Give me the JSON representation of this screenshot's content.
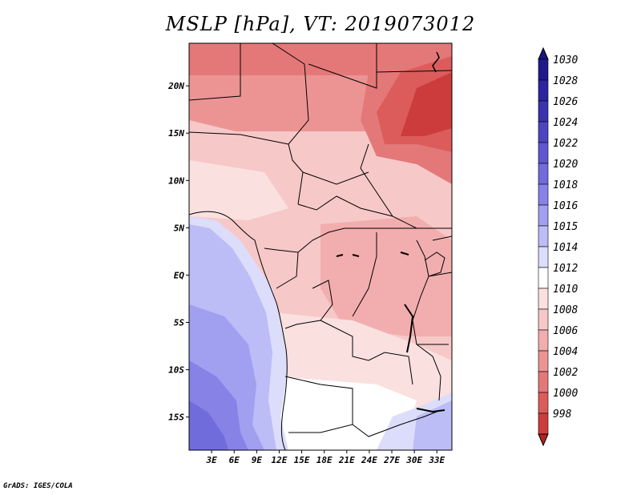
{
  "title": "MSLP [hPa], VT: 2019073012",
  "footer": "GrADS: IGES/COLA",
  "map": {
    "variable": "Mean sea level pressure",
    "units": "hPa",
    "valid_time": "2019073012",
    "lon_range": [
      0,
      35
    ],
    "lat_range": [
      -18.5,
      24.5
    ],
    "lat_ticks": [
      {
        "value": 20,
        "label": "20N"
      },
      {
        "value": 15,
        "label": "15N"
      },
      {
        "value": 10,
        "label": "10N"
      },
      {
        "value": 5,
        "label": "5N"
      },
      {
        "value": 0,
        "label": "EQ"
      },
      {
        "value": -5,
        "label": "5S"
      },
      {
        "value": -10,
        "label": "10S"
      },
      {
        "value": -15,
        "label": "15S"
      }
    ],
    "lon_ticks": [
      {
        "value": 3,
        "label": "3E"
      },
      {
        "value": 6,
        "label": "6E"
      },
      {
        "value": 9,
        "label": "9E"
      },
      {
        "value": 12,
        "label": "12E"
      },
      {
        "value": 15,
        "label": "15E"
      },
      {
        "value": 18,
        "label": "18E"
      },
      {
        "value": 21,
        "label": "21E"
      },
      {
        "value": 24,
        "label": "24E"
      },
      {
        "value": 27,
        "label": "27E"
      },
      {
        "value": 30,
        "label": "30E"
      },
      {
        "value": 33,
        "label": "33E"
      }
    ]
  },
  "colorbar": {
    "levels": [
      {
        "label": "1030",
        "color": "#1e1a8c"
      },
      {
        "label": "1028",
        "color": "#2a26a0"
      },
      {
        "label": "1026",
        "color": "#3833b0"
      },
      {
        "label": "1024",
        "color": "#4a46c0"
      },
      {
        "label": "1022",
        "color": "#5d58cf"
      },
      {
        "label": "1020",
        "color": "#716cdb"
      },
      {
        "label": "1018",
        "color": "#8782e6"
      },
      {
        "label": "1016",
        "color": "#a19ff0"
      },
      {
        "label": "1015",
        "color": "#bcbcf6"
      },
      {
        "label": "1014",
        "color": "#dcdcfb"
      },
      {
        "label": "1012",
        "color": "#ffffff"
      },
      {
        "label": "1010",
        "color": "#fbe0e0"
      },
      {
        "label": "1008",
        "color": "#f7c8c8"
      },
      {
        "label": "1006",
        "color": "#f2aeae"
      },
      {
        "label": "1004",
        "color": "#ec9494"
      },
      {
        "label": "1002",
        "color": "#e47878"
      },
      {
        "label": "1000",
        "color": "#dc5c5c"
      },
      {
        "label": "998",
        "color": "#cc3c3c"
      }
    ],
    "top_color": "#1a1480",
    "bottom_color": "#b42222"
  }
}
